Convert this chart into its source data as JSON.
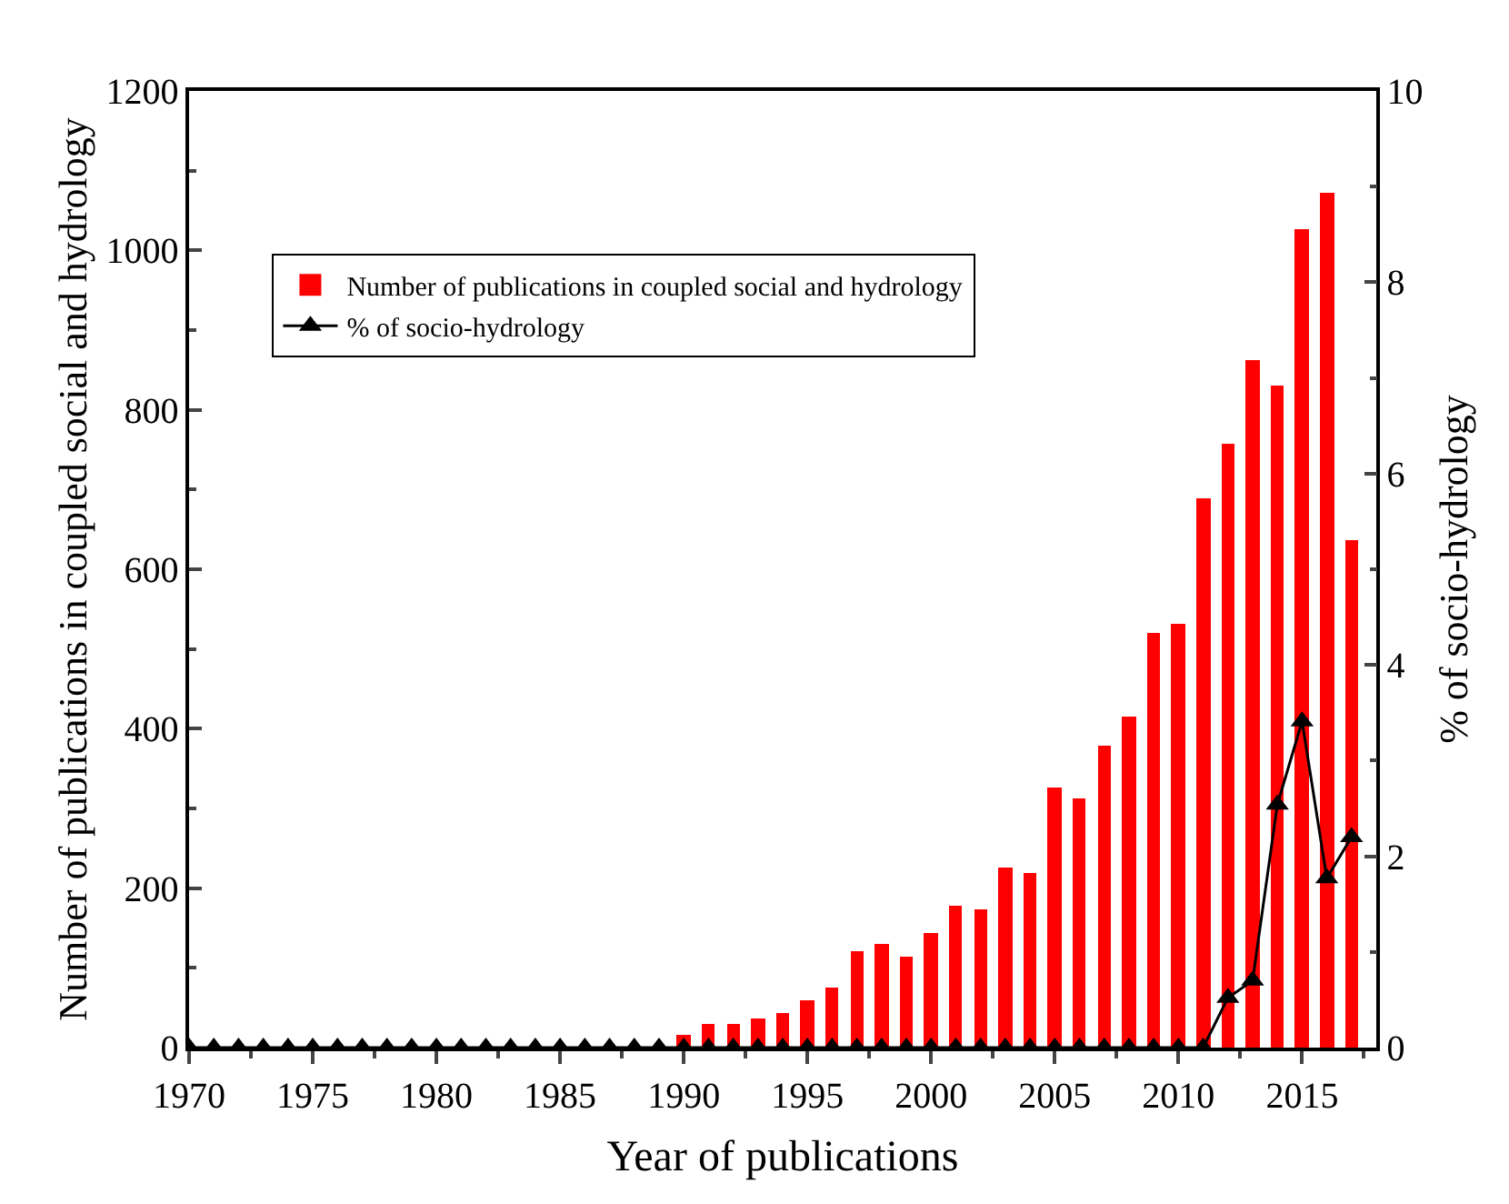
{
  "chart_data": {
    "type": "bar",
    "xlabel": "Year of publications",
    "ylabel": "Number of publications in coupled social and hydrology",
    "y2label": "% of socio-hydrology",
    "xlim": [
      1970,
      2018
    ],
    "xticks": [
      1970,
      1975,
      1980,
      1985,
      1990,
      1995,
      2000,
      2005,
      2010,
      2015
    ],
    "ylim": [
      0,
      1200
    ],
    "yticks": [
      0,
      200,
      400,
      600,
      800,
      1000,
      1200
    ],
    "y2lim": [
      0,
      10
    ],
    "y2ticks": [
      0,
      2,
      4,
      6,
      8,
      10
    ],
    "legend": "top left",
    "grid": false,
    "marker": "triangle",
    "series": [
      {
        "name": "Number of publications in coupled social and hydrology",
        "color": "#ff0000",
        "x": [
          1990,
          1991,
          1992,
          1993,
          1994,
          1995,
          1996,
          1997,
          1998,
          1999,
          2000,
          2001,
          2002,
          2003,
          2004,
          2005,
          2006,
          2007,
          2008,
          2009,
          2010,
          2011,
          2012,
          2013,
          2014,
          2015,
          2016,
          2017
        ],
        "values": [
          17,
          29,
          30,
          36,
          43,
          59,
          75,
          120,
          130,
          113,
          144,
          177,
          173,
          227,
          220,
          327,
          312,
          378,
          415,
          520,
          532,
          688,
          758,
          862,
          830,
          1027,
          1072,
          636
        ]
      },
      {
        "name": "% of socio-hydrology",
        "type": "line",
        "axis": "y2",
        "color": "#000000",
        "x": [
          1970,
          1971,
          1972,
          1973,
          1974,
          1975,
          1976,
          1977,
          1978,
          1979,
          1980,
          1981,
          1982,
          1983,
          1984,
          1985,
          1986,
          1987,
          1988,
          1989,
          1990,
          1991,
          1992,
          1993,
          1994,
          1995,
          1996,
          1997,
          1998,
          1999,
          2000,
          2001,
          2002,
          2003,
          2004,
          2005,
          2006,
          2007,
          2008,
          2009,
          2010,
          2011,
          2012,
          2013,
          2014,
          2015,
          2016,
          2017
        ],
        "values": [
          0,
          0,
          0,
          0,
          0,
          0,
          0,
          0,
          0,
          0,
          0,
          0,
          0,
          0,
          0,
          0,
          0,
          0,
          0,
          0,
          0,
          0,
          0,
          0,
          0,
          0,
          0,
          0,
          0,
          0,
          0,
          0,
          0,
          0,
          0,
          0,
          0,
          0,
          0,
          0,
          0,
          0,
          0.52,
          0.7,
          2.54,
          3.41,
          1.77,
          2.2
        ]
      }
    ]
  }
}
